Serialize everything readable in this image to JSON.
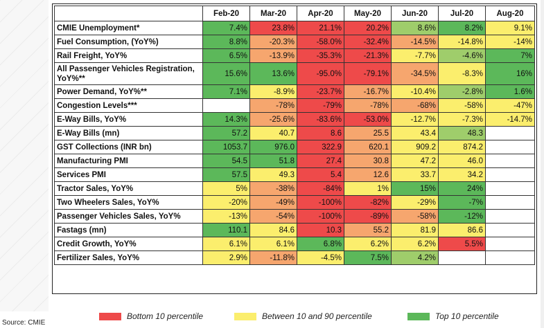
{
  "colors": {
    "red": "#ee4a4a",
    "lightred": "#f6a66e",
    "yellow": "#fbee6d",
    "lightgreen": "#9fcd6b",
    "green": "#5cb85a",
    "none": "#ffffff"
  },
  "header": {
    "corner": "",
    "months": [
      "Feb-20",
      "Mar-20",
      "Apr-20",
      "May-20",
      "Jun-20",
      "Jul-20",
      "Aug-20"
    ]
  },
  "rows": [
    {
      "label": "CMIE Unemployment*",
      "cells": [
        {
          "v": "7.4%",
          "c": "green"
        },
        {
          "v": "23.8%",
          "c": "red"
        },
        {
          "v": "21.1%",
          "c": "red"
        },
        {
          "v": "20.2%",
          "c": "red"
        },
        {
          "v": "8.6%",
          "c": "lightgreen"
        },
        {
          "v": "8.2%",
          "c": "green"
        },
        {
          "v": "9.1%",
          "c": "yellow"
        }
      ]
    },
    {
      "label": "Fuel Consumption, (YoY%)",
      "cells": [
        {
          "v": "8.8%",
          "c": "green"
        },
        {
          "v": "-20.3%",
          "c": "lightred"
        },
        {
          "v": "-58.0%",
          "c": "red"
        },
        {
          "v": "-32.4%",
          "c": "red"
        },
        {
          "v": "-14.5%",
          "c": "lightred"
        },
        {
          "v": "-14.8%",
          "c": "yellow"
        },
        {
          "v": "-14%",
          "c": "yellow"
        }
      ]
    },
    {
      "label": "Rail Freight, YoY%",
      "cells": [
        {
          "v": "6.5%",
          "c": "green"
        },
        {
          "v": "-13.9%",
          "c": "lightred"
        },
        {
          "v": "-35.3%",
          "c": "red"
        },
        {
          "v": "-21.3%",
          "c": "red"
        },
        {
          "v": "-7.7%",
          "c": "yellow"
        },
        {
          "v": "-4.6%",
          "c": "lightgreen"
        },
        {
          "v": "7%",
          "c": "green"
        }
      ]
    },
    {
      "label": "All Passenger Vehicles Registration, YoY%**",
      "tall": true,
      "cells": [
        {
          "v": "15.6%",
          "c": "green"
        },
        {
          "v": "13.6%",
          "c": "green"
        },
        {
          "v": "-95.0%",
          "c": "red"
        },
        {
          "v": "-79.1%",
          "c": "red"
        },
        {
          "v": "-34.5%",
          "c": "lightred"
        },
        {
          "v": "-8.3%",
          "c": "yellow"
        },
        {
          "v": "16%",
          "c": "green"
        }
      ]
    },
    {
      "label": "Power Demand, YoY%**",
      "cells": [
        {
          "v": "7.1%",
          "c": "green"
        },
        {
          "v": "-8.9%",
          "c": "yellow"
        },
        {
          "v": "-23.7%",
          "c": "red"
        },
        {
          "v": "-16.7%",
          "c": "lightred"
        },
        {
          "v": "-10.4%",
          "c": "yellow"
        },
        {
          "v": "-2.8%",
          "c": "lightgreen"
        },
        {
          "v": "1.6%",
          "c": "green"
        }
      ]
    },
    {
      "label": "Congestion Levels***",
      "cells": [
        {
          "v": "",
          "c": "none"
        },
        {
          "v": "-78%",
          "c": "lightred"
        },
        {
          "v": "-79%",
          "c": "red"
        },
        {
          "v": "-78%",
          "c": "lightred"
        },
        {
          "v": "-68%",
          "c": "lightred"
        },
        {
          "v": "-58%",
          "c": "yellow"
        },
        {
          "v": "-47%",
          "c": "yellow"
        }
      ]
    },
    {
      "label": "E-Way Bills, YoY%",
      "cells": [
        {
          "v": "14.3%",
          "c": "green"
        },
        {
          "v": "-25.6%",
          "c": "lightred"
        },
        {
          "v": "-83.6%",
          "c": "red"
        },
        {
          "v": "-53.0%",
          "c": "red"
        },
        {
          "v": "-12.7%",
          "c": "yellow"
        },
        {
          "v": "-7.3%",
          "c": "yellow"
        },
        {
          "v": "-14.7%",
          "c": "yellow"
        }
      ]
    },
    {
      "label": "E-Way Bills (mn)",
      "cells": [
        {
          "v": "57.2",
          "c": "green"
        },
        {
          "v": "40.7",
          "c": "yellow"
        },
        {
          "v": "8.6",
          "c": "red"
        },
        {
          "v": "25.5",
          "c": "lightred"
        },
        {
          "v": "43.4",
          "c": "yellow"
        },
        {
          "v": "48.3",
          "c": "lightgreen"
        },
        {
          "v": "",
          "c": "none"
        }
      ]
    },
    {
      "label": "GST Collections (INR bn)",
      "cells": [
        {
          "v": "1053.7",
          "c": "green"
        },
        {
          "v": "976.0",
          "c": "green"
        },
        {
          "v": "322.9",
          "c": "red"
        },
        {
          "v": "620.1",
          "c": "lightred"
        },
        {
          "v": "909.2",
          "c": "yellow"
        },
        {
          "v": "874.2",
          "c": "yellow"
        },
        {
          "v": "",
          "c": "none"
        }
      ]
    },
    {
      "label": "Manufacturing PMI",
      "cells": [
        {
          "v": "54.5",
          "c": "green"
        },
        {
          "v": "51.8",
          "c": "green"
        },
        {
          "v": "27.4",
          "c": "red"
        },
        {
          "v": "30.8",
          "c": "lightred"
        },
        {
          "v": "47.2",
          "c": "yellow"
        },
        {
          "v": "46.0",
          "c": "yellow"
        },
        {
          "v": "",
          "c": "none"
        }
      ]
    },
    {
      "label": "Services PMI",
      "cells": [
        {
          "v": "57.5",
          "c": "green"
        },
        {
          "v": "49.3",
          "c": "yellow"
        },
        {
          "v": "5.4",
          "c": "red"
        },
        {
          "v": "12.6",
          "c": "lightred"
        },
        {
          "v": "33.7",
          "c": "yellow"
        },
        {
          "v": "34.2",
          "c": "yellow"
        },
        {
          "v": "",
          "c": "none"
        }
      ]
    },
    {
      "label": "Tractor Sales, YoY%",
      "cells": [
        {
          "v": "5%",
          "c": "yellow"
        },
        {
          "v": "-38%",
          "c": "lightred"
        },
        {
          "v": "-84%",
          "c": "red"
        },
        {
          "v": "1%",
          "c": "yellow"
        },
        {
          "v": "15%",
          "c": "green"
        },
        {
          "v": "24%",
          "c": "green"
        },
        {
          "v": "",
          "c": "none"
        }
      ]
    },
    {
      "label": "Two Wheelers Sales, YoY%",
      "cells": [
        {
          "v": "-20%",
          "c": "yellow"
        },
        {
          "v": "-49%",
          "c": "lightred"
        },
        {
          "v": "-100%",
          "c": "red"
        },
        {
          "v": "-82%",
          "c": "red"
        },
        {
          "v": "-29%",
          "c": "yellow"
        },
        {
          "v": "-7%",
          "c": "green"
        },
        {
          "v": "",
          "c": "none"
        }
      ]
    },
    {
      "label": "Passenger Vehicles Sales, YoY%",
      "cells": [
        {
          "v": "-13%",
          "c": "yellow"
        },
        {
          "v": "-54%",
          "c": "lightred"
        },
        {
          "v": "-100%",
          "c": "red"
        },
        {
          "v": "-89%",
          "c": "red"
        },
        {
          "v": "-58%",
          "c": "lightred"
        },
        {
          "v": "-12%",
          "c": "green"
        },
        {
          "v": "",
          "c": "none"
        }
      ]
    },
    {
      "label": "Fastags (mn)",
      "cells": [
        {
          "v": "110.1",
          "c": "green"
        },
        {
          "v": "84.6",
          "c": "yellow"
        },
        {
          "v": "10.3",
          "c": "red"
        },
        {
          "v": "55.2",
          "c": "lightred"
        },
        {
          "v": "81.9",
          "c": "yellow"
        },
        {
          "v": "86.6",
          "c": "yellow"
        },
        {
          "v": "",
          "c": "none"
        }
      ]
    },
    {
      "label": "Credit Growth, YoY%",
      "cells": [
        {
          "v": "6.1%",
          "c": "yellow"
        },
        {
          "v": "6.1%",
          "c": "yellow"
        },
        {
          "v": "6.8%",
          "c": "green"
        },
        {
          "v": "6.2%",
          "c": "yellow"
        },
        {
          "v": "6.2%",
          "c": "yellow"
        },
        {
          "v": "5.5%",
          "c": "red"
        },
        {
          "v": "",
          "c": "none"
        }
      ]
    },
    {
      "label": "Fertilizer Sales, YoY%",
      "cells": [
        {
          "v": "2.9%",
          "c": "yellow"
        },
        {
          "v": "-11.8%",
          "c": "lightred"
        },
        {
          "v": "-4.5%",
          "c": "yellow"
        },
        {
          "v": "7.5%",
          "c": "green"
        },
        {
          "v": "4.2%",
          "c": "lightgreen"
        },
        {
          "v": "",
          "c": "none"
        },
        {
          "v": "",
          "c": "none"
        }
      ]
    }
  ],
  "legend": [
    {
      "label": "Bottom 10 percentile",
      "c": "red"
    },
    {
      "label": "Between 10 and 90 percentile",
      "c": "yellow"
    },
    {
      "label": "Top 10 percentile",
      "c": "green"
    }
  ],
  "source": "Source: CMIE"
}
